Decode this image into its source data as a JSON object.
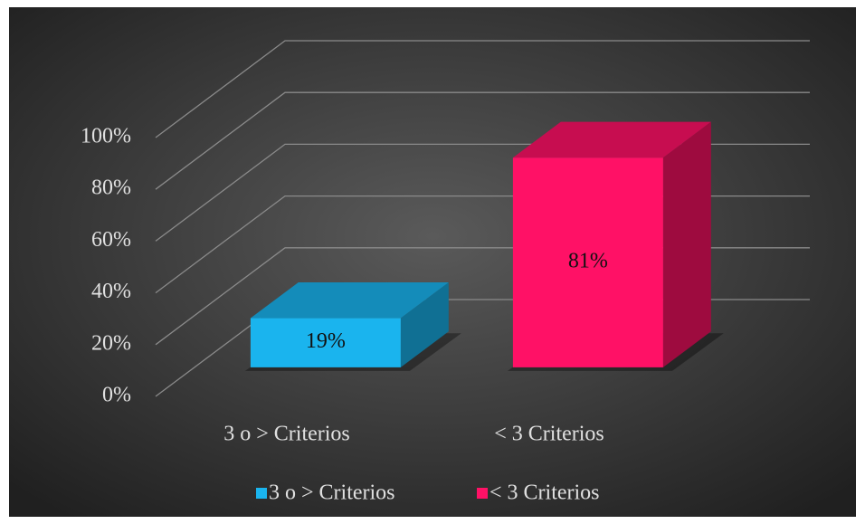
{
  "chart_data": {
    "type": "bar3d",
    "categories": [
      "3 o > Criterios",
      "< 3 Criterios"
    ],
    "values": [
      19,
      81
    ],
    "value_labels": [
      "19%",
      "81%"
    ],
    "colors": [
      "#1ab4ee",
      "#ff1166"
    ],
    "ylim": [
      0,
      100
    ],
    "yticks": [
      {
        "value": 0,
        "label": "0%"
      },
      {
        "value": 20,
        "label": "20%"
      },
      {
        "value": 40,
        "label": "40%"
      },
      {
        "value": 60,
        "label": "60%"
      },
      {
        "value": 80,
        "label": "80%"
      },
      {
        "value": 100,
        "label": "100%"
      }
    ],
    "grid": true,
    "legend": "bottom"
  }
}
